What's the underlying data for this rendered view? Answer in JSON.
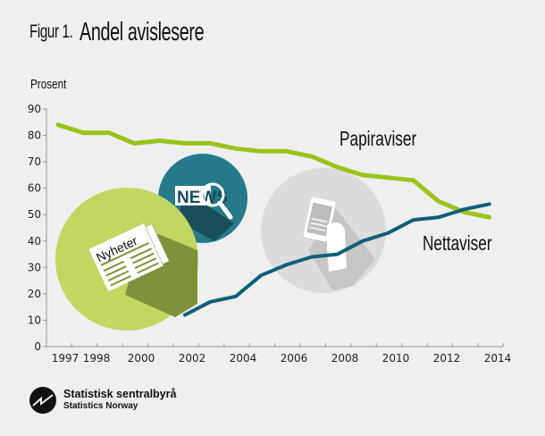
{
  "header": {
    "figure_label": "Figur 1.",
    "title": "Andel avislesere"
  },
  "chart_data": {
    "type": "line",
    "title": "Andel avislesere",
    "ylabel": "Prosent",
    "xlabel": "",
    "ylim": [
      0,
      90
    ],
    "yticks": [
      0,
      10,
      20,
      30,
      40,
      50,
      60,
      70,
      80,
      90
    ],
    "xtick_labels": [
      "1997",
      "1998",
      "2000",
      "2002",
      "2004",
      "2006",
      "2008",
      "2010",
      "2012",
      "2014"
    ],
    "grid": false,
    "series": [
      {
        "name": "Papiraviser",
        "color": "#9bc31c",
        "x": [
          1995.5,
          1996.5,
          1997.5,
          1998.5,
          1999.5,
          2000.5,
          2001.5,
          2002.5,
          2003.5,
          2004.5,
          2005.5,
          2006.5,
          2007.5,
          2008.5,
          2009.5,
          2010.5,
          2011.5,
          2012.5
        ],
        "values": [
          84,
          81,
          81,
          77,
          78,
          77,
          77,
          75,
          74,
          74,
          72,
          68,
          65,
          64,
          63,
          55,
          51,
          49
        ]
      },
      {
        "name": "Nettaviser",
        "color": "#0e5f78",
        "x": [
          2000.5,
          2001.5,
          2002.5,
          2003.5,
          2004.5,
          2005.5,
          2006.5,
          2007.5,
          2008.5,
          2009.5,
          2010.5,
          2011.5,
          2012.5
        ],
        "values": [
          12,
          17,
          19,
          27,
          31,
          34,
          35,
          40,
          43,
          48,
          49,
          52,
          54
        ]
      }
    ],
    "annotations": [
      "Papiraviser",
      "Nettaviser"
    ],
    "legend_position": "inline labels"
  },
  "illustrations": {
    "newspaper_text": "Nyheter",
    "news_text": "NEWS"
  },
  "footer": {
    "org_name": "Statistisk sentralbyrå",
    "org_name_en": "Statistics Norway"
  }
}
